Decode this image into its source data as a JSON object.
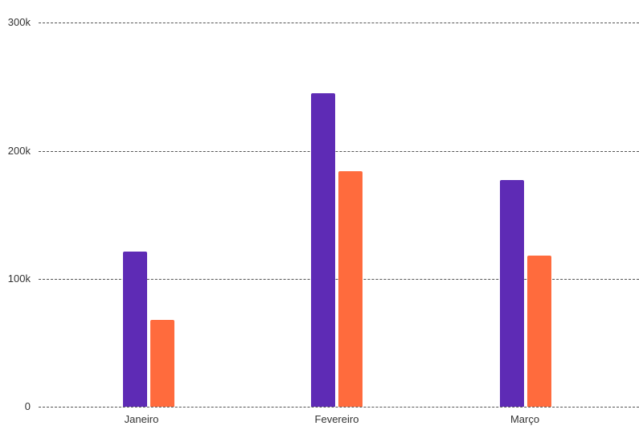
{
  "chart_data": {
    "type": "bar",
    "title": "",
    "xlabel": "",
    "ylabel": "",
    "categories": [
      "Janeiro",
      "Fevereiro",
      "Março"
    ],
    "series": [
      {
        "name": "",
        "color": "#5E2BB5",
        "values": [
          121000,
          245000,
          177000
        ]
      },
      {
        "name": "",
        "color": "#FF6B3D",
        "values": [
          68000,
          184000,
          118000
        ]
      }
    ],
    "ylim": [
      0,
      300000
    ],
    "yticks": [
      0,
      100000,
      200000,
      300000
    ],
    "ytick_labels": [
      "0",
      "100k",
      "200k",
      "300k"
    ],
    "grid": true,
    "grid_style": "dashed",
    "legend": null
  },
  "axis": {
    "y_labels": [
      "0",
      "100k",
      "200k",
      "300k"
    ],
    "x_labels": [
      "Janeiro",
      "Fevereiro",
      "Março"
    ]
  }
}
